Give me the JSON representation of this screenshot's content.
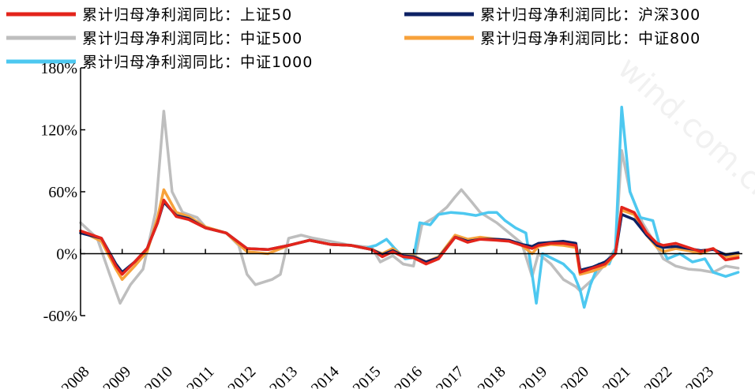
{
  "chart_data": {
    "type": "line",
    "title": "",
    "xlabel": "",
    "ylabel": "",
    "ylim": [
      -60,
      180
    ],
    "yticks": [
      -60,
      0,
      60,
      120,
      180
    ],
    "ytick_labels": [
      "-60%",
      "0%",
      "60%",
      "120%",
      "180%"
    ],
    "xlim": [
      2008,
      2023.9
    ],
    "xtick_labels": [
      "2008",
      "2009",
      "2010",
      "2011",
      "2012",
      "2013",
      "2014",
      "2015",
      "2016",
      "2017",
      "2018",
      "2019",
      "2020",
      "2021",
      "2022",
      "2023"
    ],
    "grid": false,
    "legend_position": "top",
    "watermark": "wind.com.cn",
    "series": [
      {
        "name": "累计归母净利润同比：上证50",
        "color": "#e3241b",
        "points": [
          [
            2008.0,
            22
          ],
          [
            2008.5,
            15
          ],
          [
            2008.85,
            -12
          ],
          [
            2009.0,
            -20
          ],
          [
            2009.3,
            -8
          ],
          [
            2009.6,
            5
          ],
          [
            2009.85,
            30
          ],
          [
            2010.0,
            52
          ],
          [
            2010.3,
            36
          ],
          [
            2010.6,
            33
          ],
          [
            2011.0,
            25
          ],
          [
            2011.5,
            20
          ],
          [
            2012.0,
            5
          ],
          [
            2012.5,
            4
          ],
          [
            2013.0,
            8
          ],
          [
            2013.5,
            13
          ],
          [
            2014.0,
            9
          ],
          [
            2014.5,
            8
          ],
          [
            2015.0,
            4
          ],
          [
            2015.25,
            -3
          ],
          [
            2015.5,
            2
          ],
          [
            2015.75,
            -3
          ],
          [
            2016.0,
            -4
          ],
          [
            2016.3,
            -10
          ],
          [
            2016.6,
            -5
          ],
          [
            2017.0,
            16
          ],
          [
            2017.3,
            11
          ],
          [
            2017.6,
            14
          ],
          [
            2018.0,
            13
          ],
          [
            2018.3,
            12
          ],
          [
            2018.6,
            8
          ],
          [
            2018.85,
            5
          ],
          [
            2019.0,
            8
          ],
          [
            2019.3,
            10
          ],
          [
            2019.6,
            10
          ],
          [
            2019.9,
            8
          ],
          [
            2020.0,
            -18
          ],
          [
            2020.3,
            -14
          ],
          [
            2020.6,
            -10
          ],
          [
            2020.85,
            0
          ],
          [
            2021.0,
            45
          ],
          [
            2021.3,
            40
          ],
          [
            2021.6,
            20
          ],
          [
            2021.85,
            10
          ],
          [
            2022.0,
            8
          ],
          [
            2022.3,
            10
          ],
          [
            2022.6,
            6
          ],
          [
            2022.9,
            2
          ],
          [
            2023.2,
            5
          ],
          [
            2023.5,
            -6
          ],
          [
            2023.8,
            -4
          ]
        ]
      },
      {
        "name": "累计归母净利润同比：沪深300",
        "color": "#0d2164",
        "points": [
          [
            2008.0,
            20
          ],
          [
            2008.5,
            15
          ],
          [
            2008.85,
            -10
          ],
          [
            2009.0,
            -18
          ],
          [
            2009.3,
            -8
          ],
          [
            2009.6,
            5
          ],
          [
            2009.85,
            30
          ],
          [
            2010.0,
            50
          ],
          [
            2010.3,
            37
          ],
          [
            2010.6,
            34
          ],
          [
            2011.0,
            25
          ],
          [
            2011.5,
            20
          ],
          [
            2012.0,
            5
          ],
          [
            2012.5,
            4
          ],
          [
            2013.0,
            8
          ],
          [
            2013.5,
            13
          ],
          [
            2014.0,
            9
          ],
          [
            2014.5,
            8
          ],
          [
            2015.0,
            4
          ],
          [
            2015.25,
            -1
          ],
          [
            2015.5,
            3
          ],
          [
            2015.75,
            -2
          ],
          [
            2016.0,
            -3
          ],
          [
            2016.3,
            -8
          ],
          [
            2016.6,
            -4
          ],
          [
            2017.0,
            16
          ],
          [
            2017.3,
            12
          ],
          [
            2017.6,
            14
          ],
          [
            2018.0,
            14
          ],
          [
            2018.3,
            13
          ],
          [
            2018.6,
            9
          ],
          [
            2018.85,
            7
          ],
          [
            2019.0,
            10
          ],
          [
            2019.3,
            11
          ],
          [
            2019.6,
            12
          ],
          [
            2019.9,
            10
          ],
          [
            2020.0,
            -16
          ],
          [
            2020.3,
            -13
          ],
          [
            2020.6,
            -8
          ],
          [
            2020.85,
            0
          ],
          [
            2021.0,
            38
          ],
          [
            2021.3,
            33
          ],
          [
            2021.6,
            18
          ],
          [
            2021.85,
            8
          ],
          [
            2022.0,
            6
          ],
          [
            2022.3,
            7
          ],
          [
            2022.6,
            5
          ],
          [
            2022.9,
            3
          ],
          [
            2023.2,
            4
          ],
          [
            2023.5,
            -1
          ],
          [
            2023.8,
            1
          ]
        ]
      },
      {
        "name": "累计归母净利润同比：中证500",
        "color": "#bebebe",
        "points": [
          [
            2008.0,
            30
          ],
          [
            2008.4,
            15
          ],
          [
            2008.7,
            -20
          ],
          [
            2008.95,
            -48
          ],
          [
            2009.2,
            -30
          ],
          [
            2009.5,
            -15
          ],
          [
            2009.8,
            40
          ],
          [
            2010.0,
            138
          ],
          [
            2010.2,
            60
          ],
          [
            2010.45,
            40
          ],
          [
            2010.8,
            35
          ],
          [
            2011.0,
            26
          ],
          [
            2011.5,
            20
          ],
          [
            2011.8,
            8
          ],
          [
            2012.0,
            -20
          ],
          [
            2012.2,
            -30
          ],
          [
            2012.6,
            -25
          ],
          [
            2012.8,
            -20
          ],
          [
            2013.0,
            15
          ],
          [
            2013.3,
            18
          ],
          [
            2013.6,
            15
          ],
          [
            2014.0,
            12
          ],
          [
            2014.5,
            8
          ],
          [
            2015.0,
            6
          ],
          [
            2015.2,
            -8
          ],
          [
            2015.5,
            -2
          ],
          [
            2015.75,
            -10
          ],
          [
            2016.0,
            -12
          ],
          [
            2016.2,
            28
          ],
          [
            2016.5,
            35
          ],
          [
            2016.8,
            45
          ],
          [
            2017.0,
            55
          ],
          [
            2017.15,
            62
          ],
          [
            2017.4,
            50
          ],
          [
            2017.6,
            40
          ],
          [
            2018.0,
            30
          ],
          [
            2018.3,
            20
          ],
          [
            2018.6,
            10
          ],
          [
            2018.85,
            -22
          ],
          [
            2019.0,
            0
          ],
          [
            2019.3,
            -10
          ],
          [
            2019.6,
            -25
          ],
          [
            2019.9,
            -32
          ],
          [
            2020.0,
            -36
          ],
          [
            2020.3,
            -25
          ],
          [
            2020.6,
            -10
          ],
          [
            2020.85,
            5
          ],
          [
            2021.0,
            100
          ],
          [
            2021.2,
            60
          ],
          [
            2021.5,
            30
          ],
          [
            2021.8,
            10
          ],
          [
            2022.0,
            -5
          ],
          [
            2022.3,
            -12
          ],
          [
            2022.6,
            -15
          ],
          [
            2022.9,
            -16
          ],
          [
            2023.2,
            -18
          ],
          [
            2023.5,
            -12
          ],
          [
            2023.8,
            -14
          ]
        ]
      },
      {
        "name": "累计归母净利润同比：中证800",
        "color": "#f7a23b",
        "points": [
          [
            2008.0,
            22
          ],
          [
            2008.5,
            12
          ],
          [
            2008.85,
            -15
          ],
          [
            2009.0,
            -25
          ],
          [
            2009.3,
            -12
          ],
          [
            2009.6,
            2
          ],
          [
            2009.85,
            35
          ],
          [
            2010.0,
            62
          ],
          [
            2010.3,
            40
          ],
          [
            2010.6,
            36
          ],
          [
            2011.0,
            26
          ],
          [
            2011.5,
            20
          ],
          [
            2012.0,
            2
          ],
          [
            2012.5,
            0
          ],
          [
            2013.0,
            8
          ],
          [
            2013.5,
            13
          ],
          [
            2014.0,
            9
          ],
          [
            2014.5,
            8
          ],
          [
            2015.0,
            4
          ],
          [
            2015.25,
            0
          ],
          [
            2015.5,
            5
          ],
          [
            2015.75,
            -2
          ],
          [
            2016.0,
            -2
          ],
          [
            2016.3,
            -8
          ],
          [
            2016.6,
            -3
          ],
          [
            2017.0,
            18
          ],
          [
            2017.3,
            14
          ],
          [
            2017.6,
            16
          ],
          [
            2018.0,
            14
          ],
          [
            2018.3,
            13
          ],
          [
            2018.6,
            8
          ],
          [
            2018.85,
            0
          ],
          [
            2019.0,
            7
          ],
          [
            2019.3,
            9
          ],
          [
            2019.6,
            8
          ],
          [
            2019.9,
            6
          ],
          [
            2020.0,
            -20
          ],
          [
            2020.3,
            -17
          ],
          [
            2020.6,
            -12
          ],
          [
            2020.85,
            0
          ],
          [
            2021.0,
            42
          ],
          [
            2021.3,
            38
          ],
          [
            2021.6,
            18
          ],
          [
            2021.85,
            6
          ],
          [
            2022.0,
            2
          ],
          [
            2022.3,
            5
          ],
          [
            2022.6,
            3
          ],
          [
            2022.9,
            0
          ],
          [
            2023.2,
            5
          ],
          [
            2023.5,
            -3
          ],
          [
            2023.8,
            -2
          ]
        ]
      },
      {
        "name": "累计归母净利润同比：中证1000",
        "color": "#4dc8f0",
        "points": [
          [
            2014.9,
            6
          ],
          [
            2015.1,
            8
          ],
          [
            2015.35,
            14
          ],
          [
            2015.55,
            5
          ],
          [
            2015.8,
            -5
          ],
          [
            2016.0,
            -4
          ],
          [
            2016.15,
            30
          ],
          [
            2016.4,
            28
          ],
          [
            2016.6,
            38
          ],
          [
            2016.9,
            40
          ],
          [
            2017.2,
            39
          ],
          [
            2017.5,
            37
          ],
          [
            2017.8,
            40
          ],
          [
            2018.0,
            40
          ],
          [
            2018.2,
            32
          ],
          [
            2018.45,
            25
          ],
          [
            2018.7,
            20
          ],
          [
            2018.85,
            -20
          ],
          [
            2018.95,
            -48
          ],
          [
            2019.1,
            0
          ],
          [
            2019.35,
            -5
          ],
          [
            2019.6,
            -10
          ],
          [
            2019.85,
            -20
          ],
          [
            2020.0,
            -35
          ],
          [
            2020.1,
            -52
          ],
          [
            2020.25,
            -30
          ],
          [
            2020.45,
            -10
          ],
          [
            2020.7,
            -10
          ],
          [
            2020.85,
            5
          ],
          [
            2021.0,
            142
          ],
          [
            2021.2,
            60
          ],
          [
            2021.45,
            35
          ],
          [
            2021.75,
            32
          ],
          [
            2021.9,
            10
          ],
          [
            2022.1,
            -5
          ],
          [
            2022.4,
            0
          ],
          [
            2022.7,
            -8
          ],
          [
            2023.0,
            -5
          ],
          [
            2023.2,
            -18
          ],
          [
            2023.5,
            -22
          ],
          [
            2023.8,
            -18
          ]
        ]
      }
    ]
  }
}
